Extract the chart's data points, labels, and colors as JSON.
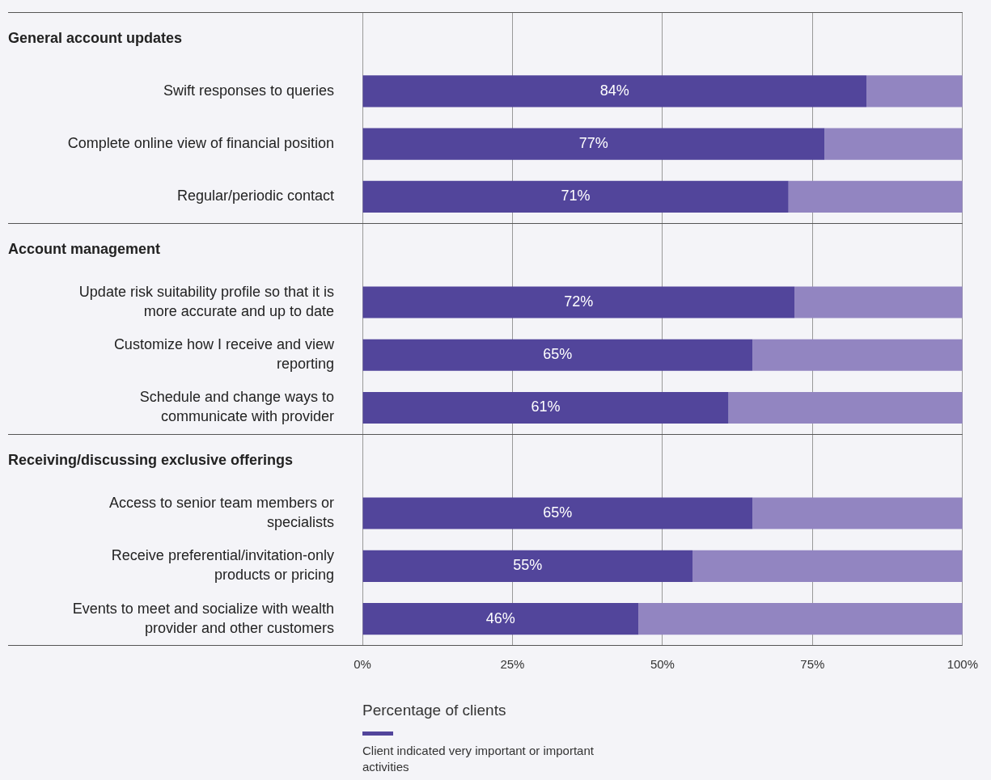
{
  "chart_data": {
    "type": "bar",
    "orientation": "horizontal",
    "stacked": true,
    "xlabel": "Percentage of clients",
    "annotations": [
      "General account updates",
      "Account management",
      "Receiving/discussing exclusive offerings"
    ],
    "categories": [
      null,
      "Swift responses to queries",
      "Complete online view of financial position",
      "Regular/periodic contact",
      null,
      "Update risk suitability profile so that it is more accurate and up to date",
      "Customize how I receive and view reporting",
      "Schedule and change ways to communicate with provider",
      null,
      "Access to senior team members or specialists",
      "Receive preferential/invitation-only products or pricing",
      "Events to meet and socialize with wealth provider and other customers"
    ],
    "series": [
      {
        "name": "Client indicated very important or important activities",
        "color": "#52459b",
        "values": [
          null,
          84,
          77,
          71,
          null,
          72,
          65,
          61,
          null,
          65,
          55,
          46
        ],
        "value_labels": [
          null,
          "84%",
          "77%",
          "71%",
          null,
          "72%",
          "65%",
          "61%",
          null,
          "65%",
          "55%",
          "46%"
        ]
      },
      {
        "color": "#9285c1",
        "values": [
          null,
          16,
          23,
          29,
          null,
          28,
          35,
          39,
          null,
          35,
          45,
          54
        ]
      }
    ],
    "xlim": [
      0,
      100
    ],
    "xticks": [
      {
        "value": 0,
        "label": "0%"
      },
      {
        "value": 25,
        "label": "25%"
      },
      {
        "value": 50,
        "label": "50%"
      },
      {
        "value": 75,
        "label": "75%"
      },
      {
        "value": 100,
        "label": "100%"
      }
    ],
    "grid": "x",
    "legend": "bottom"
  }
}
